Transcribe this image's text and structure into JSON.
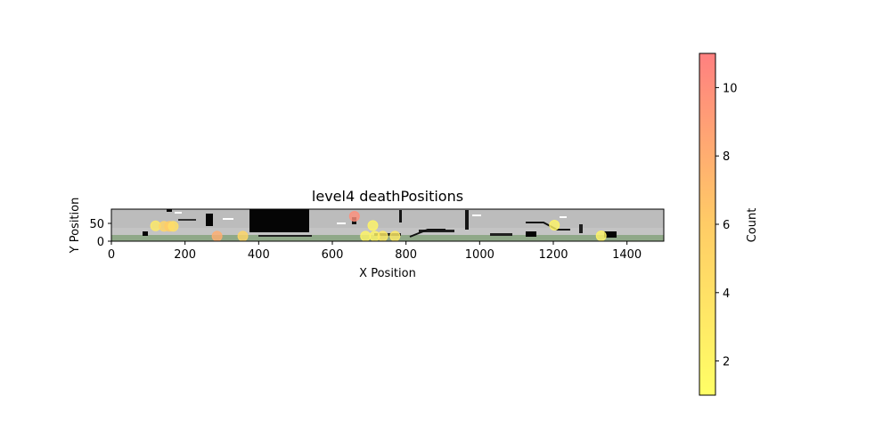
{
  "chart_data": {
    "type": "scatter",
    "title": "level4 deathPositions",
    "xlabel": "X Position",
    "ylabel": "Y Position",
    "xlim": [
      0,
      1500
    ],
    "ylim": [
      0,
      90
    ],
    "x_ticks": [
      0,
      200,
      400,
      600,
      800,
      1000,
      1200,
      1400
    ],
    "y_ticks": [
      0,
      50
    ],
    "background": "level map image (grey terrain with black platforms, green ground strip)",
    "points": [
      {
        "x": 120,
        "y": 43,
        "count": 3
      },
      {
        "x": 143,
        "y": 42,
        "count": 5
      },
      {
        "x": 158,
        "y": 42,
        "count": 6
      },
      {
        "x": 168,
        "y": 42,
        "count": 4
      },
      {
        "x": 287,
        "y": 14,
        "count": 8
      },
      {
        "x": 357,
        "y": 14,
        "count": 5
      },
      {
        "x": 660,
        "y": 70,
        "count": 10
      },
      {
        "x": 690,
        "y": 14,
        "count": 2
      },
      {
        "x": 710,
        "y": 44,
        "count": 2
      },
      {
        "x": 715,
        "y": 14,
        "count": 2
      },
      {
        "x": 737,
        "y": 14,
        "count": 3
      },
      {
        "x": 770,
        "y": 14,
        "count": 3
      },
      {
        "x": 1203,
        "y": 45,
        "count": 2
      },
      {
        "x": 1330,
        "y": 15,
        "count": 2
      }
    ],
    "colorbar": {
      "label": "Count",
      "min": 1,
      "max": 11,
      "ticks": [
        2,
        4,
        6,
        8,
        10
      ],
      "colormap": [
        "#ffff66",
        "#ffcc66",
        "#ff8080"
      ]
    }
  }
}
